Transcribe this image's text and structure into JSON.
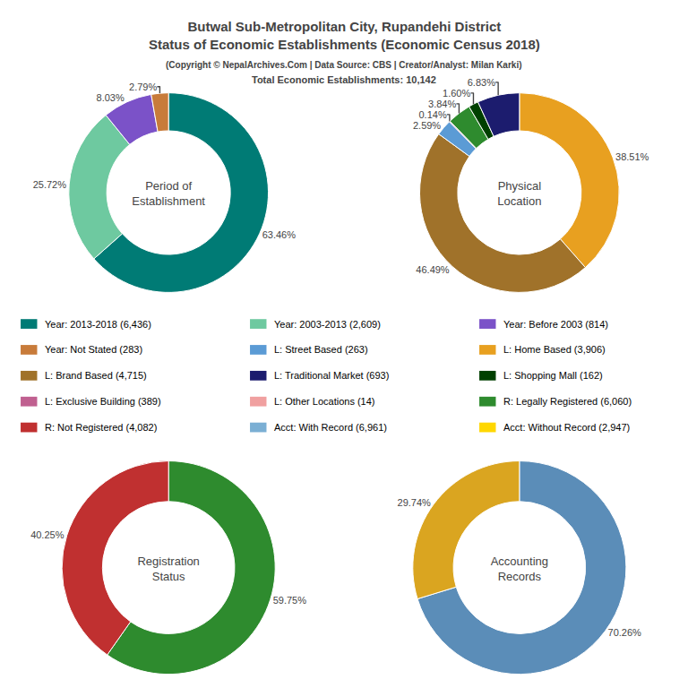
{
  "title": "Butwal Sub-Metropolitan City, Rupandehi District\nStatus of Economic Establishments (Economic Census 2018)",
  "subtitle": "(Copyright © NepalArchives.Com | Data Source: CBS | Creator/Analyst: Milan Karki)",
  "annotations": [
    "Total Economic Establishments: 10,142"
  ],
  "legend_items": [
    {
      "label": "Year: 2013-2018 (6,436)",
      "color": "#007B75"
    },
    {
      "label": "Year: 2003-2013 (2,609)",
      "color": "#6EC9A0"
    },
    {
      "label": "Year: Before 2003 (814)",
      "color": "#7B52C8"
    },
    {
      "label": "Year: Not Stated (283)",
      "color": "#C87B3A"
    },
    {
      "label": "L: Street Based (263)",
      "color": "#5B9BD5"
    },
    {
      "label": "L: Home Based (3,906)",
      "color": "#E8A020"
    },
    {
      "label": "L: Brand Based (4,715)",
      "color": "#A0722A"
    },
    {
      "label": "L: Traditional Market (693)",
      "color": "#1C1C6E"
    },
    {
      "label": "L: Shopping Mall (162)",
      "color": "#004000"
    },
    {
      "label": "L: Exclusive Building (389)",
      "color": "#C06090"
    },
    {
      "label": "L: Other Locations (14)",
      "color": "#F0A0A0"
    },
    {
      "label": "R: Legally Registered (6,060)",
      "color": "#2E8B2E"
    },
    {
      "label": "R: Not Registered (4,082)",
      "color": "#C03030"
    },
    {
      "label": "Acct: With Record (6,961)",
      "color": "#7BAFD4"
    },
    {
      "label": "Acct: Without Record (2,947)",
      "color": "#FFD700"
    }
  ],
  "chart_data": [
    {
      "type": "pie",
      "title": "Period of\nEstablishment",
      "values": [
        63.46,
        25.72,
        8.03,
        2.79
      ],
      "value_labels": [
        "63.46%",
        "25.72%",
        "8.03%",
        "2.79%"
      ],
      "colors": [
        "#007B75",
        "#6EC9A0",
        "#7B52C8",
        "#C87B3A"
      ],
      "data_labels": true
    },
    {
      "type": "pie",
      "title": "Physical\nLocation",
      "values": [
        38.51,
        46.49,
        2.59,
        0.14,
        3.84,
        1.6,
        6.83
      ],
      "value_labels": [
        "38.51%",
        "46.49%",
        "2.59%",
        "0.14%",
        "3.84%",
        "1.60%",
        "6.83%"
      ],
      "colors": [
        "#E8A020",
        "#A0722A",
        "#5B9BD5",
        "#C06090",
        "#2E8B2E",
        "#004000",
        "#1C1C6E"
      ],
      "data_labels": true
    },
    {
      "type": "pie",
      "title": "Registration\nStatus",
      "values": [
        59.75,
        40.25
      ],
      "value_labels": [
        "59.75%",
        "40.25%"
      ],
      "colors": [
        "#2E8B2E",
        "#C03030"
      ],
      "data_labels": true
    },
    {
      "type": "pie",
      "title": "Accounting\nRecords",
      "values": [
        70.26,
        29.74
      ],
      "value_labels": [
        "70.26%",
        "29.74%"
      ],
      "colors": [
        "#5B8DB8",
        "#DAA520"
      ],
      "data_labels": true
    }
  ]
}
